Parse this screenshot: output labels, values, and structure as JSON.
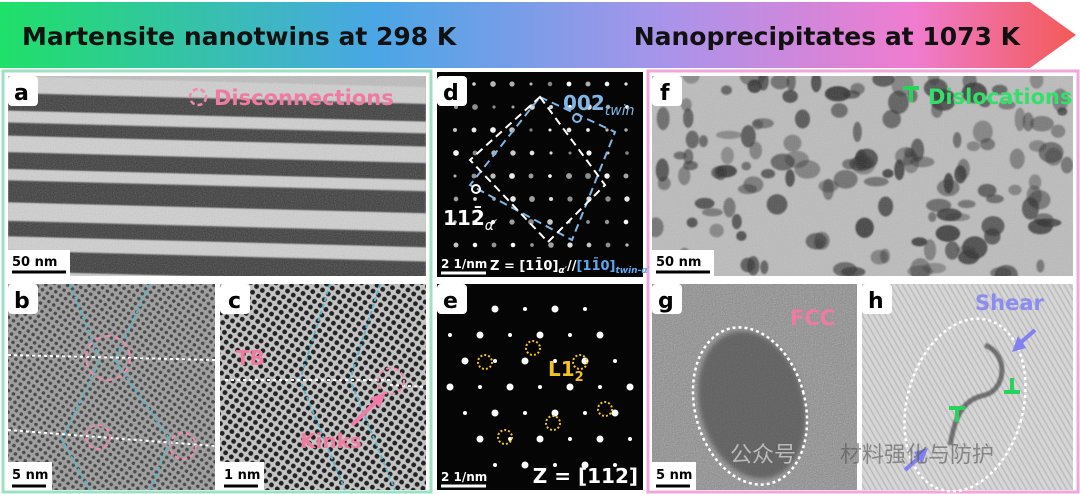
{
  "banner": {
    "left": "Martensite nanotwins at 298 K",
    "right": "Nanoprecipitates at 1073 K"
  },
  "panels": {
    "a": {
      "label": "a",
      "legend": "Disconnections",
      "scale": "50 nm"
    },
    "b": {
      "label": "b",
      "scale": "5 nm"
    },
    "c": {
      "label": "c",
      "boundary": "TB",
      "kinks": "Kinks",
      "scale": "1 nm"
    },
    "d": {
      "label": "d",
      "spot1": "002",
      "spot1_sub": "twin",
      "spot2": "112̄",
      "spot2_sub": "α′",
      "scale": "2 1/nm",
      "zone": "Z = [11̄0]",
      "zone_sub": "α′",
      "zone_sep": "//",
      "zone2": "[11̄0]",
      "zone2_sub": "twin-α′"
    },
    "e": {
      "label": "e",
      "phase": "L1",
      "phase_sub": "2",
      "zone": "Z = [112]",
      "scale": "2 1/nm"
    },
    "f": {
      "label": "f",
      "legend": "Dislocations",
      "scale": "50 nm"
    },
    "g": {
      "label": "g",
      "phase": "FCC",
      "scale": "5 nm"
    },
    "h": {
      "label": "h",
      "note": "Shear"
    }
  },
  "watermark": {
    "account": "公众号",
    "name": "材料强化与防护"
  }
}
